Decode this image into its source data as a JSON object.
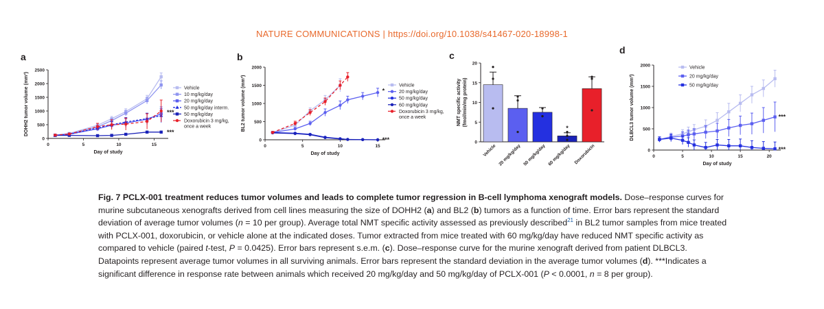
{
  "header": {
    "journal": "NATURE COMMUNICATIONS",
    "separator": " | ",
    "doi": "https://doi.org/10.1038/s41467-020-18998-1"
  },
  "caption": {
    "fig_label": "Fig. 7",
    "title": "PCLX-001 treatment reduces tumor volumes and leads to complete tumor regression in B-cell lymphoma xenograft models.",
    "p1": " Dose–response curves for murine subcutaneous xenografts derived from cell lines measuring the size of DOHH2 (",
    "p1a": "a",
    "p2": ") and BL2 (",
    "p2b": "b",
    "p3": ") tumors as a function of time. Error bars represent the standard deviation of average tumor volumes (",
    "n_sym": "n",
    "p4": " = 10 per group). Average total NMT specific activity assessed as previously described",
    "ref": "21",
    "p5": " in BL2 tumor samples from mice treated with PCLX-001, doxorubicin, or vehicle alone at the indicated doses. Tumor extracted from mice treated with 60 mg/kg/day have reduced NMT specific activity as compared to vehicle (paired ",
    "t_sym": "t",
    "p6": "-test, ",
    "P_sym": "P",
    "p7": " = 0.0425). Error bars represent s.e.m. (",
    "p7c": "c",
    "p8": "). Dose–response curve for the murine xenograft derived from patient DLBCL3. Datapoints represent average tumor volumes in all surviving animals. Error bars represent the standard deviation in the average tumor volumes (",
    "p8d": "d",
    "p9": "). ***Indicates a significant difference in response rate between animals which received 20 mg/kg/day and 50 mg/kg/day of PCLX-001 (",
    "P2_sym": "P",
    "p10": " < 0.0001, ",
    "n2_sym": "n",
    "p11": " = 8 per group)."
  },
  "colors": {
    "vehicle": "#b8bcf0",
    "mg10": "#8f95f0",
    "mg20": "#5b5ff0",
    "mg50": "#2430e0",
    "mg60": "#1a22b8",
    "doxorubicin": "#e8202a",
    "axis": "#231f20",
    "header": "#e8692c"
  },
  "chart_data": [
    {
      "panel": "a",
      "type": "line",
      "ylabel": "DOHH2 tumor volume (mm³)",
      "xlabel": "Day of study",
      "xlim": [
        0,
        17
      ],
      "ylim": [
        0,
        2500
      ],
      "xticks": [
        0,
        5,
        10,
        15
      ],
      "yticks": [
        0,
        500,
        1000,
        1500,
        2000,
        2500
      ],
      "series": [
        {
          "name": "Vehicle",
          "color": "#b8bcf0",
          "dash": "",
          "marker": "square",
          "x": [
            1,
            3,
            7,
            9,
            11,
            14,
            16
          ],
          "y": [
            120,
            180,
            480,
            720,
            980,
            1450,
            2250
          ],
          "err": [
            20,
            30,
            60,
            80,
            100,
            120,
            140
          ]
        },
        {
          "name": "10 mg/kg/day",
          "color": "#8f95f0",
          "dash": "",
          "marker": "square",
          "x": [
            1,
            3,
            7,
            9,
            11,
            14,
            16
          ],
          "y": [
            120,
            170,
            420,
            650,
            920,
            1380,
            1950
          ],
          "err": [
            20,
            30,
            60,
            80,
            100,
            120,
            150
          ]
        },
        {
          "name": "20 mg/kg/day",
          "color": "#5b5ff0",
          "dash": "",
          "marker": "square",
          "x": [
            1,
            3,
            7,
            9,
            11,
            14,
            16
          ],
          "y": [
            110,
            150,
            350,
            480,
            560,
            700,
            900
          ],
          "err": [
            20,
            30,
            80,
            120,
            160,
            200,
            250
          ]
        },
        {
          "name": "50 mg/kg/day interm.",
          "color": "#2430e0",
          "dash": "3,2",
          "marker": "triangle",
          "x": [
            1,
            3,
            7,
            9,
            11,
            14,
            16
          ],
          "y": [
            110,
            150,
            380,
            500,
            600,
            720,
            830
          ],
          "err": [
            20,
            30,
            80,
            120,
            160,
            200,
            250
          ]
        },
        {
          "name": "50 mg/kg/day",
          "color": "#1a22b8",
          "dash": "",
          "marker": "square",
          "x": [
            1,
            3,
            7,
            9,
            11,
            14,
            16
          ],
          "y": [
            110,
            110,
            100,
            110,
            150,
            230,
            230
          ],
          "err": [
            15,
            15,
            15,
            15,
            20,
            25,
            25
          ]
        },
        {
          "name": "Doxorubicin 3 mg/kg,",
          "name2": "once a week",
          "color": "#e8202a",
          "dash": "4,3",
          "marker": "circle",
          "x": [
            1,
            3,
            7,
            9,
            11,
            14,
            16
          ],
          "y": [
            120,
            160,
            430,
            500,
            520,
            620,
            1000
          ],
          "err": [
            20,
            30,
            120,
            180,
            220,
            280,
            400
          ]
        }
      ],
      "annotations": [
        {
          "text": "***",
          "x": 16.8,
          "y": 950
        },
        {
          "text": "***",
          "x": 16.8,
          "y": 230
        }
      ]
    },
    {
      "panel": "b",
      "type": "line",
      "ylabel": "BL2 tumor volume (mm³)",
      "xlabel": "Day of study",
      "xlim": [
        0,
        16
      ],
      "ylim": [
        0,
        2000
      ],
      "xticks": [
        0,
        5,
        10,
        15
      ],
      "yticks": [
        0,
        500,
        1000,
        1500,
        2000
      ],
      "series": [
        {
          "name": "Vehicle",
          "color": "#b8bcf0",
          "dash": "",
          "marker": "square",
          "x": [
            1,
            4,
            6,
            8,
            10
          ],
          "y": [
            200,
            400,
            800,
            1100,
            1500
          ],
          "err": [
            30,
            50,
            80,
            120,
            180
          ]
        },
        {
          "name": "20 mg/kg/day",
          "color": "#5b5ff0",
          "dash": "",
          "marker": "circle",
          "x": [
            1,
            4,
            6,
            8,
            10,
            11,
            13,
            15
          ],
          "y": [
            200,
            300,
            450,
            750,
            950,
            1100,
            1200,
            1300
          ],
          "err": [
            30,
            40,
            60,
            100,
            120,
            100,
            100,
            120
          ]
        },
        {
          "name": "50 mg/kg/day",
          "color": "#2430e0",
          "dash": "",
          "marker": "circle",
          "x": [
            1,
            4,
            6,
            8,
            10,
            11,
            13,
            15
          ],
          "y": [
            200,
            180,
            150,
            70,
            30,
            10,
            5,
            0
          ],
          "err": [
            20,
            20,
            20,
            15,
            10,
            5,
            0,
            0
          ]
        },
        {
          "name": "60 mg/kg/day",
          "color": "#1a22b8",
          "dash": "",
          "marker": "circle",
          "x": [
            1,
            4,
            6,
            8,
            10,
            11,
            13,
            15
          ],
          "y": [
            190,
            170,
            140,
            60,
            25,
            8,
            3,
            0
          ],
          "err": [
            20,
            20,
            20,
            15,
            10,
            5,
            0,
            0
          ]
        },
        {
          "name": "Doxorubicin 3 mg/kg,",
          "name2": "once a week",
          "color": "#e8202a",
          "dash": "4,3",
          "marker": "circle",
          "x": [
            1,
            4,
            6,
            8,
            10,
            11
          ],
          "y": [
            200,
            450,
            750,
            1050,
            1500,
            1730
          ],
          "err": [
            30,
            60,
            80,
            100,
            120,
            120
          ]
        }
      ],
      "annotations": [
        {
          "text": "*",
          "x": 15.6,
          "y": 1350
        },
        {
          "text": "***",
          "x": 15.6,
          "y": 0
        }
      ]
    },
    {
      "panel": "c",
      "type": "bar",
      "ylabel": "NMT specific activity",
      "ylabel2": "(fmol/min/mg protein)",
      "categories": [
        "Vehicle",
        "20 mg/kg/day",
        "50 mg/kg/day",
        "60 mg/kg/day",
        "Doxorubicin"
      ],
      "values": [
        14.5,
        8.5,
        7.5,
        1.5,
        13.5
      ],
      "err": [
        3.2,
        3.2,
        1.2,
        0.8,
        3.0
      ],
      "points": [
        [
          19,
          8.5,
          16
        ],
        [
          10.5,
          2.5,
          11.5
        ],
        [
          8.5,
          6.5,
          6.5
        ],
        [
          2.5,
          0.5,
          1.5
        ],
        [
          16.5,
          8,
          16
        ]
      ],
      "bar_colors": [
        "#b8bcf0",
        "#5b5ff0",
        "#2430e0",
        "#1a22b8",
        "#e8202a"
      ],
      "ylim": [
        0,
        20
      ],
      "yticks": [
        0,
        5,
        10,
        15,
        20
      ],
      "annotations": [
        {
          "text": "*",
          "category": "60 mg/kg/day",
          "y": 3.3
        }
      ]
    },
    {
      "panel": "d",
      "type": "line",
      "ylabel": "DLBCL3 tumor volume (mm³)",
      "xlabel": "Day of study",
      "xlim": [
        0,
        22
      ],
      "ylim": [
        0,
        2000
      ],
      "xticks": [
        0,
        5,
        10,
        15,
        20
      ],
      "yticks": [
        0,
        500,
        1000,
        1500,
        2000
      ],
      "series": [
        {
          "name": "Vehicle",
          "color": "#b8bcf0",
          "dash": "",
          "marker": "square",
          "x": [
            1,
            3,
            5,
            6,
            7,
            9,
            11,
            13,
            15,
            17,
            19,
            21
          ],
          "y": [
            250,
            320,
            380,
            430,
            480,
            560,
            700,
            900,
            1100,
            1300,
            1450,
            1680
          ],
          "err": [
            60,
            80,
            100,
            110,
            120,
            150,
            180,
            200,
            200,
            200,
            200,
            200
          ]
        },
        {
          "name": "20 mg/kg/day",
          "color": "#5b5ff0",
          "dash": "",
          "marker": "square",
          "x": [
            1,
            3,
            5,
            6,
            7,
            9,
            11,
            13,
            15,
            17,
            19,
            21
          ],
          "y": [
            250,
            300,
            330,
            360,
            380,
            420,
            450,
            520,
            580,
            620,
            700,
            780
          ],
          "err": [
            60,
            80,
            100,
            110,
            120,
            150,
            180,
            200,
            220,
            250,
            300,
            350
          ]
        },
        {
          "name": "50 mg/kg/day",
          "color": "#2430e0",
          "dash": "",
          "marker": "square",
          "x": [
            1,
            3,
            5,
            6,
            7,
            9,
            11,
            13,
            15,
            17,
            19,
            21
          ],
          "y": [
            250,
            280,
            230,
            180,
            120,
            60,
            120,
            100,
            100,
            60,
            40,
            30
          ],
          "err": [
            60,
            80,
            100,
            110,
            120,
            120,
            130,
            150,
            160,
            160,
            160,
            160
          ]
        }
      ],
      "annotations": [
        {
          "text": "***",
          "x": 21.6,
          "y": 780
        },
        {
          "text": "***",
          "x": 21.6,
          "y": 20
        }
      ]
    }
  ],
  "panel_labels": [
    "a",
    "b",
    "c",
    "d"
  ]
}
